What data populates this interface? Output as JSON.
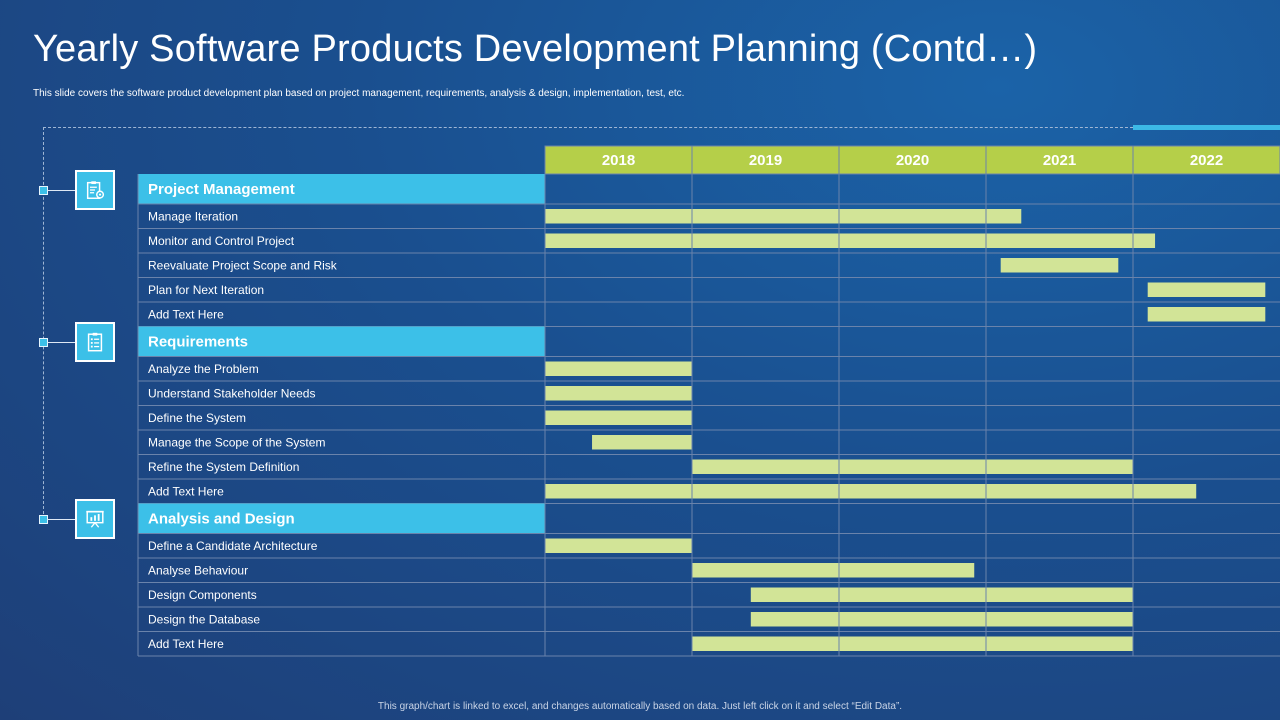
{
  "title": "Yearly Software Products Development Planning (Contd…)",
  "subtitle": "This slide covers the software product development plan based on project management,  requirements, analysis & design, implementation,  test, etc.",
  "footnote": "This graph/chart is linked to excel, and changes automatically based on data. Just left click on it and select “Edit Data”.",
  "colors": {
    "header_bg": "#b5cf49",
    "section_bg": "#3cc0e8",
    "bar": "#d2e497",
    "grid": "#6a83ab",
    "accent": "#3cb9e6"
  },
  "icons": [
    "clipboard-gear-icon",
    "checklist-icon",
    "presentation-chart-icon"
  ],
  "chart_data": {
    "type": "gantt",
    "years": [
      "2018",
      "2019",
      "2020",
      "2021",
      "2022"
    ],
    "x_range": [
      2018,
      2023
    ],
    "sections": [
      {
        "name": "Project Management",
        "tasks": [
          {
            "label": "Manage Iteration",
            "start": 2018.0,
            "end": 2021.24
          },
          {
            "label": "Monitor and Control Project",
            "start": 2018.0,
            "end": 2022.15
          },
          {
            "label": "Reevaluate Project Scope and Risk",
            "start": 2021.1,
            "end": 2021.9
          },
          {
            "label": "Plan for Next Iteration",
            "start": 2022.1,
            "end": 2022.9
          },
          {
            "label": "Add Text Here",
            "start": 2022.1,
            "end": 2022.9
          }
        ]
      },
      {
        "name": "Requirements",
        "tasks": [
          {
            "label": "Analyze  the Problem",
            "start": 2018.0,
            "end": 2019.0
          },
          {
            "label": "Understand Stakeholder Needs",
            "start": 2018.0,
            "end": 2019.0
          },
          {
            "label": "Define the System",
            "start": 2018.0,
            "end": 2019.0
          },
          {
            "label": "Manage the Scope of the System",
            "start": 2018.32,
            "end": 2019.0
          },
          {
            "label": "Refine the System Definition",
            "start": 2019.0,
            "end": 2022.0
          },
          {
            "label": "Add Text Here",
            "start": 2018.0,
            "end": 2022.43
          }
        ]
      },
      {
        "name": "Analysis and Design",
        "tasks": [
          {
            "label": "Define a Candidate Architecture",
            "start": 2018.0,
            "end": 2019.0
          },
          {
            "label": "Analyse Behaviour",
            "start": 2019.0,
            "end": 2020.92
          },
          {
            "label": "Design Components",
            "start": 2019.4,
            "end": 2022.0
          },
          {
            "label": "Design the Database",
            "start": 2019.4,
            "end": 2022.0
          },
          {
            "label": "Add Text Here",
            "start": 2019.0,
            "end": 2022.0
          }
        ]
      }
    ]
  }
}
